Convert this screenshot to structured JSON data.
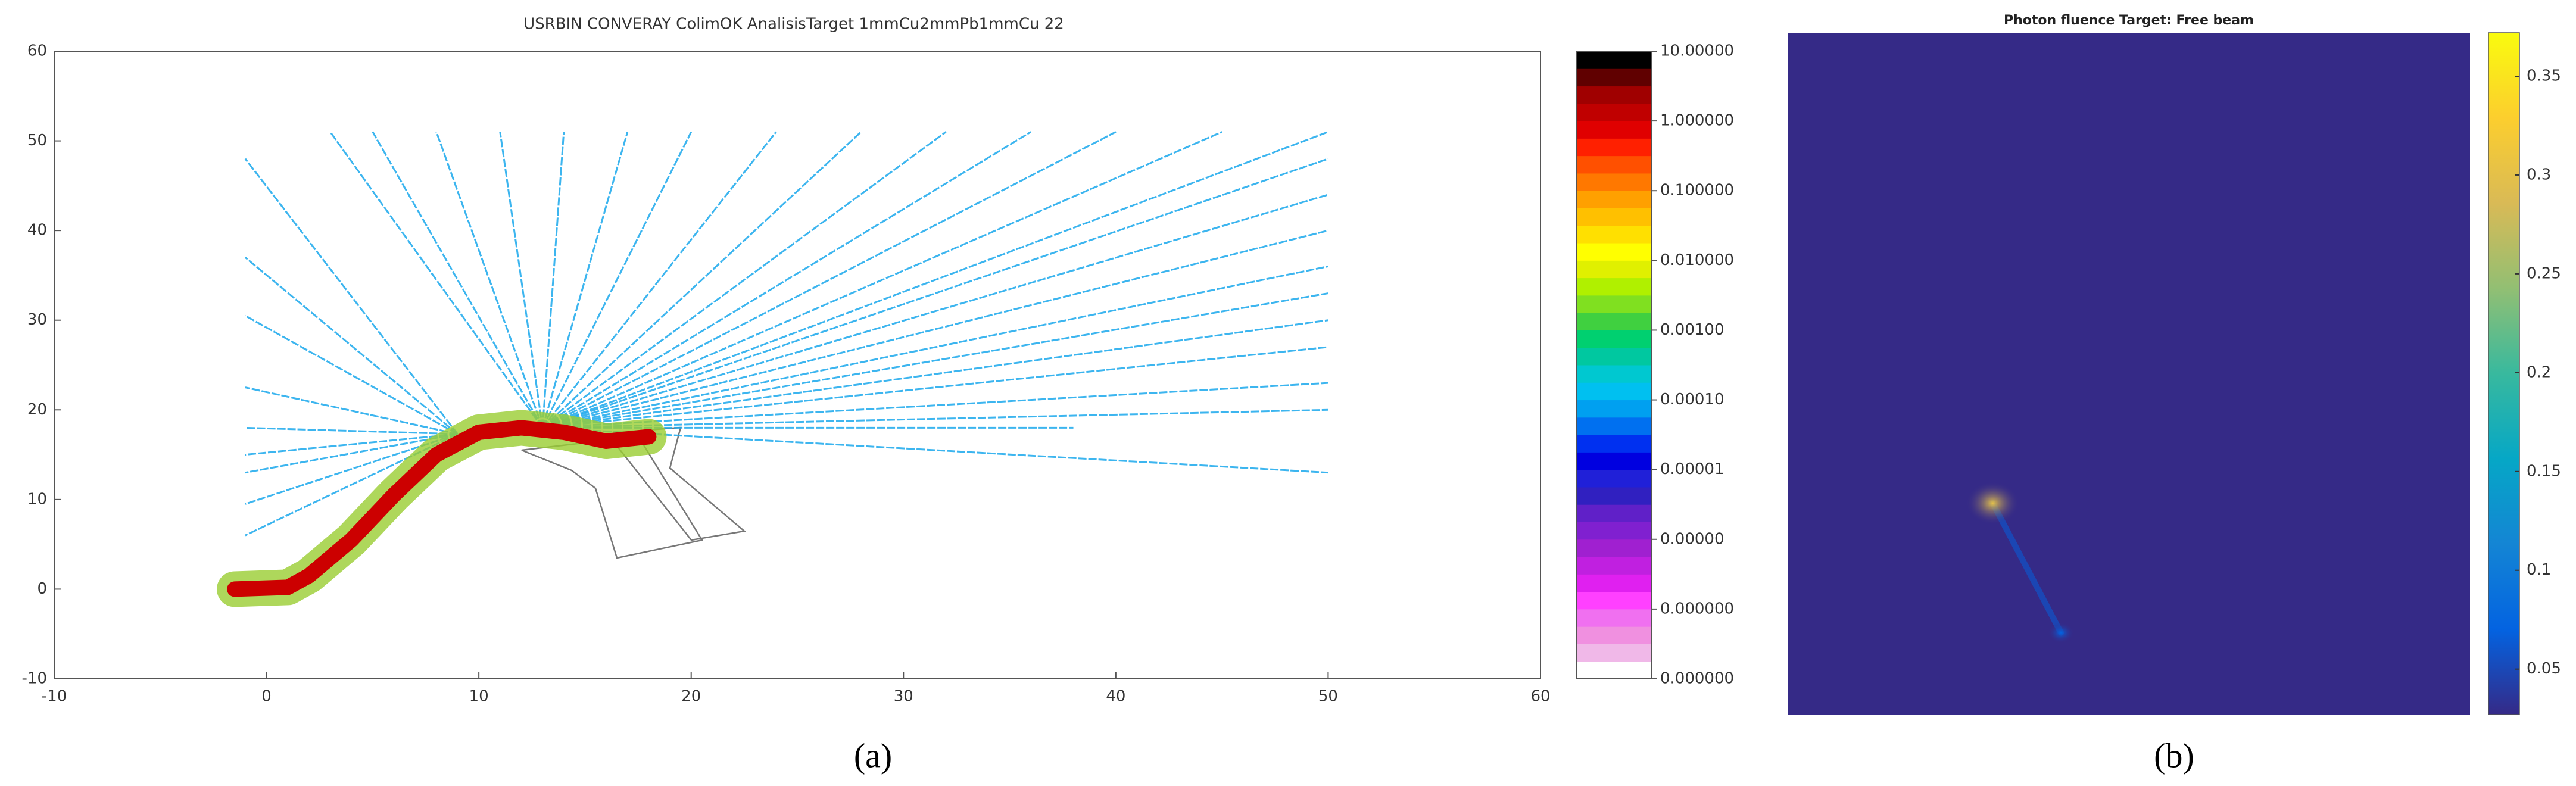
{
  "chart_data": [
    {
      "type": "tracks",
      "title": "USRBIN CONVERAY ColimOK AnalisisTarget 1mmCu2mmPb1mmCu 22",
      "caption": "(a)",
      "xlim": [
        -10,
        60
      ],
      "xticks": [
        -10,
        0,
        10,
        20,
        30,
        40,
        50,
        60
      ],
      "ylim": [
        -10,
        60
      ],
      "yticks": [
        -10,
        0,
        10,
        20,
        30,
        40,
        50,
        60
      ],
      "beam": {
        "color": "#cc0000",
        "halo_color": "#9acd32",
        "x": [
          -1.5,
          1,
          2,
          4,
          6,
          8,
          10,
          12,
          14,
          16,
          18
        ],
        "y": [
          0,
          0.2,
          1.5,
          5.5,
          10.5,
          15,
          17.5,
          18,
          17.5,
          16.5,
          17
        ]
      },
      "track_color": "#1aa8ec",
      "tracks": [
        {
          "x": [
            9,
            -1
          ],
          "y": [
            17.3,
            48
          ]
        },
        {
          "x": [
            9,
            -1
          ],
          "y": [
            17.3,
            37
          ]
        },
        {
          "x": [
            9,
            -1
          ],
          "y": [
            17.3,
            30.5
          ]
        },
        {
          "x": [
            9,
            -1
          ],
          "y": [
            17.3,
            22.5
          ]
        },
        {
          "x": [
            9,
            -1
          ],
          "y": [
            17.3,
            18
          ]
        },
        {
          "x": [
            9,
            -1
          ],
          "y": [
            17.3,
            15
          ]
        },
        {
          "x": [
            9,
            -1
          ],
          "y": [
            17.3,
            13
          ]
        },
        {
          "x": [
            9,
            -1
          ],
          "y": [
            17.3,
            9.5
          ]
        },
        {
          "x": [
            9,
            -1
          ],
          "y": [
            17.3,
            6
          ]
        },
        {
          "x": [
            13,
            3
          ],
          "y": [
            18,
            51
          ]
        },
        {
          "x": [
            13,
            5
          ],
          "y": [
            18,
            51
          ]
        },
        {
          "x": [
            13,
            8
          ],
          "y": [
            18,
            51
          ]
        },
        {
          "x": [
            13,
            11
          ],
          "y": [
            18,
            51
          ]
        },
        {
          "x": [
            13,
            14
          ],
          "y": [
            18,
            51
          ]
        },
        {
          "x": [
            13,
            17
          ],
          "y": [
            18,
            51
          ]
        },
        {
          "x": [
            13,
            20
          ],
          "y": [
            18,
            51
          ]
        },
        {
          "x": [
            13,
            24
          ],
          "y": [
            18,
            51
          ]
        },
        {
          "x": [
            13,
            28
          ],
          "y": [
            18,
            51
          ]
        },
        {
          "x": [
            13,
            32
          ],
          "y": [
            18,
            51
          ]
        },
        {
          "x": [
            13,
            36
          ],
          "y": [
            18,
            51
          ]
        },
        {
          "x": [
            13,
            40
          ],
          "y": [
            18,
            51
          ]
        },
        {
          "x": [
            13,
            45
          ],
          "y": [
            18,
            51
          ]
        },
        {
          "x": [
            13,
            50
          ],
          "y": [
            18,
            51
          ]
        },
        {
          "x": [
            13,
            50
          ],
          "y": [
            18,
            48
          ]
        },
        {
          "x": [
            13,
            50
          ],
          "y": [
            18,
            44
          ]
        },
        {
          "x": [
            13,
            50
          ],
          "y": [
            18,
            40
          ]
        },
        {
          "x": [
            13,
            50
          ],
          "y": [
            18,
            36
          ]
        },
        {
          "x": [
            13,
            50
          ],
          "y": [
            18,
            33
          ]
        },
        {
          "x": [
            13,
            50
          ],
          "y": [
            18,
            30
          ]
        },
        {
          "x": [
            13,
            50
          ],
          "y": [
            18,
            27
          ]
        },
        {
          "x": [
            13,
            50
          ],
          "y": [
            18,
            23
          ]
        },
        {
          "x": [
            13,
            50
          ],
          "y": [
            18,
            20
          ]
        },
        {
          "x": [
            13,
            50
          ],
          "y": [
            18,
            13
          ]
        },
        {
          "x": [
            13,
            38
          ],
          "y": [
            18,
            18
          ]
        }
      ],
      "colorbar": {
        "log": true,
        "clim": [
          1e-08,
          10
        ],
        "colors": [
          "#ffffff",
          "#f0b8e8",
          "#f090e0",
          "#f070f0",
          "#ff40ff",
          "#e020f0",
          "#c020e0",
          "#a020d0",
          "#8020d0",
          "#6020c8",
          "#3020c0",
          "#2020d8",
          "#0000e0",
          "#0030f0",
          "#0070f0",
          "#00a0f0",
          "#00c0f0",
          "#00c8d0",
          "#00c8a0",
          "#00d070",
          "#40d040",
          "#80e020",
          "#b0f000",
          "#e0f000",
          "#ffff00",
          "#ffe000",
          "#ffc000",
          "#ffa000",
          "#ff7800",
          "#ff5000",
          "#ff2000",
          "#e00000",
          "#c00000",
          "#a00000",
          "#600000",
          "#000000"
        ],
        "ticks": [
          {
            "value": 10,
            "label": "10.00000"
          },
          {
            "value": 1,
            "label": "1.000000"
          },
          {
            "value": 0.1,
            "label": "0.100000"
          },
          {
            "value": 0.01,
            "label": "0.010000"
          },
          {
            "value": 0.001,
            "label": "0.00100"
          },
          {
            "value": 0.0001,
            "label": "0.00010"
          },
          {
            "value": 1e-05,
            "label": "0.00001"
          },
          {
            "value": 1e-06,
            "label": "0.00000"
          },
          {
            "value": 1e-07,
            "label": "0.000000"
          },
          {
            "value": 1e-08,
            "label": "0.000000"
          }
        ]
      }
    },
    {
      "type": "heatmap",
      "title": "Photon fluence Target: Free beam",
      "caption": "(b)",
      "xlim": [
        0,
        1
      ],
      "ylim": [
        1,
        0
      ],
      "x": [
        0.3,
        0.4
      ],
      "y": [
        0.69,
        0.88
      ],
      "values": [
        0.3,
        0.07
      ],
      "colormap": [
        "#352a87",
        "#0363e1",
        "#1485d4",
        "#06a7c6",
        "#38b99e",
        "#92bf73",
        "#d9ba56",
        "#fcce2e",
        "#f9fb0e"
      ],
      "clim": [
        0.027,
        0.372
      ],
      "cticks": [
        0.05,
        0.1,
        0.15,
        0.2,
        0.25,
        0.3,
        0.35
      ]
    }
  ]
}
